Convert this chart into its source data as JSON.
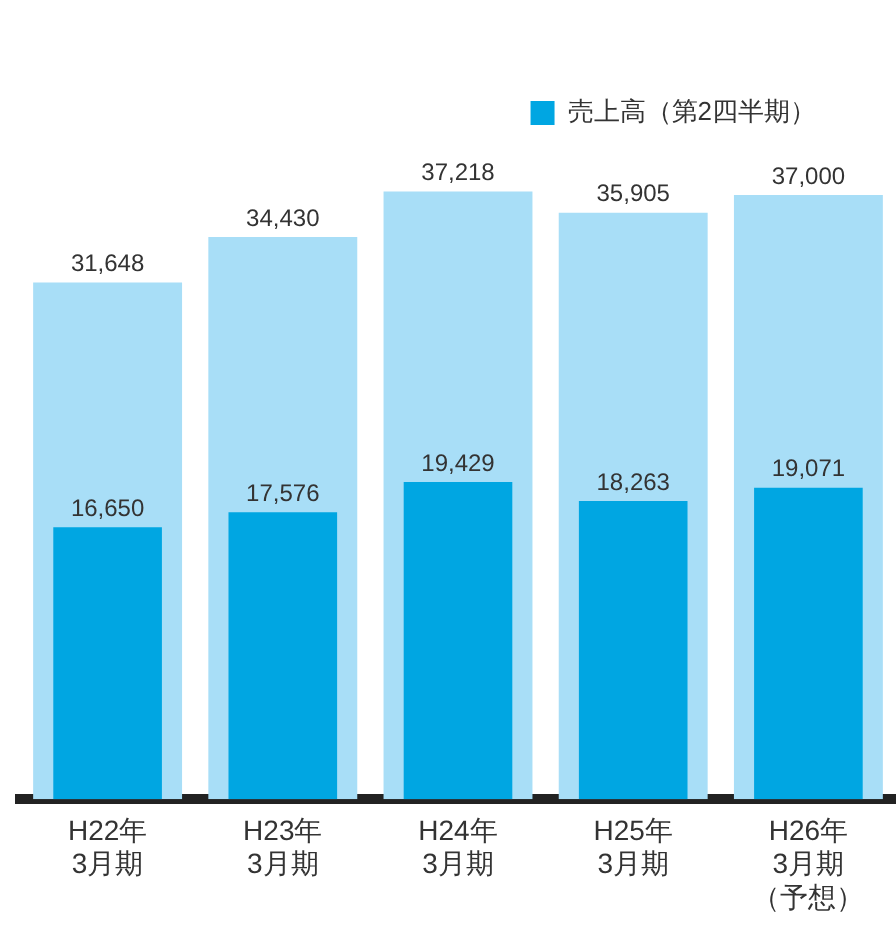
{
  "chart_data": {
    "type": "bar",
    "categories": [
      "H22年3月期",
      "H23年3月期",
      "H24年3月期",
      "H25年3月期",
      "H26年3月期（予想）"
    ],
    "series": [
      {
        "color": "#a8def7",
        "values": [
          31648,
          34430,
          37218,
          35905,
          37000
        ],
        "value_labels": [
          "31,648",
          "34,430",
          "37,218",
          "35,905",
          "37,000"
        ]
      },
      {
        "name": "売上高（第2四半期）",
        "color": "#00a6e2",
        "values": [
          16650,
          17576,
          19429,
          18263,
          19071
        ],
        "value_labels": [
          "16,650",
          "17,576",
          "19,429",
          "18,263",
          "19,071"
        ]
      }
    ],
    "legend": "top right",
    "grid": false
  }
}
